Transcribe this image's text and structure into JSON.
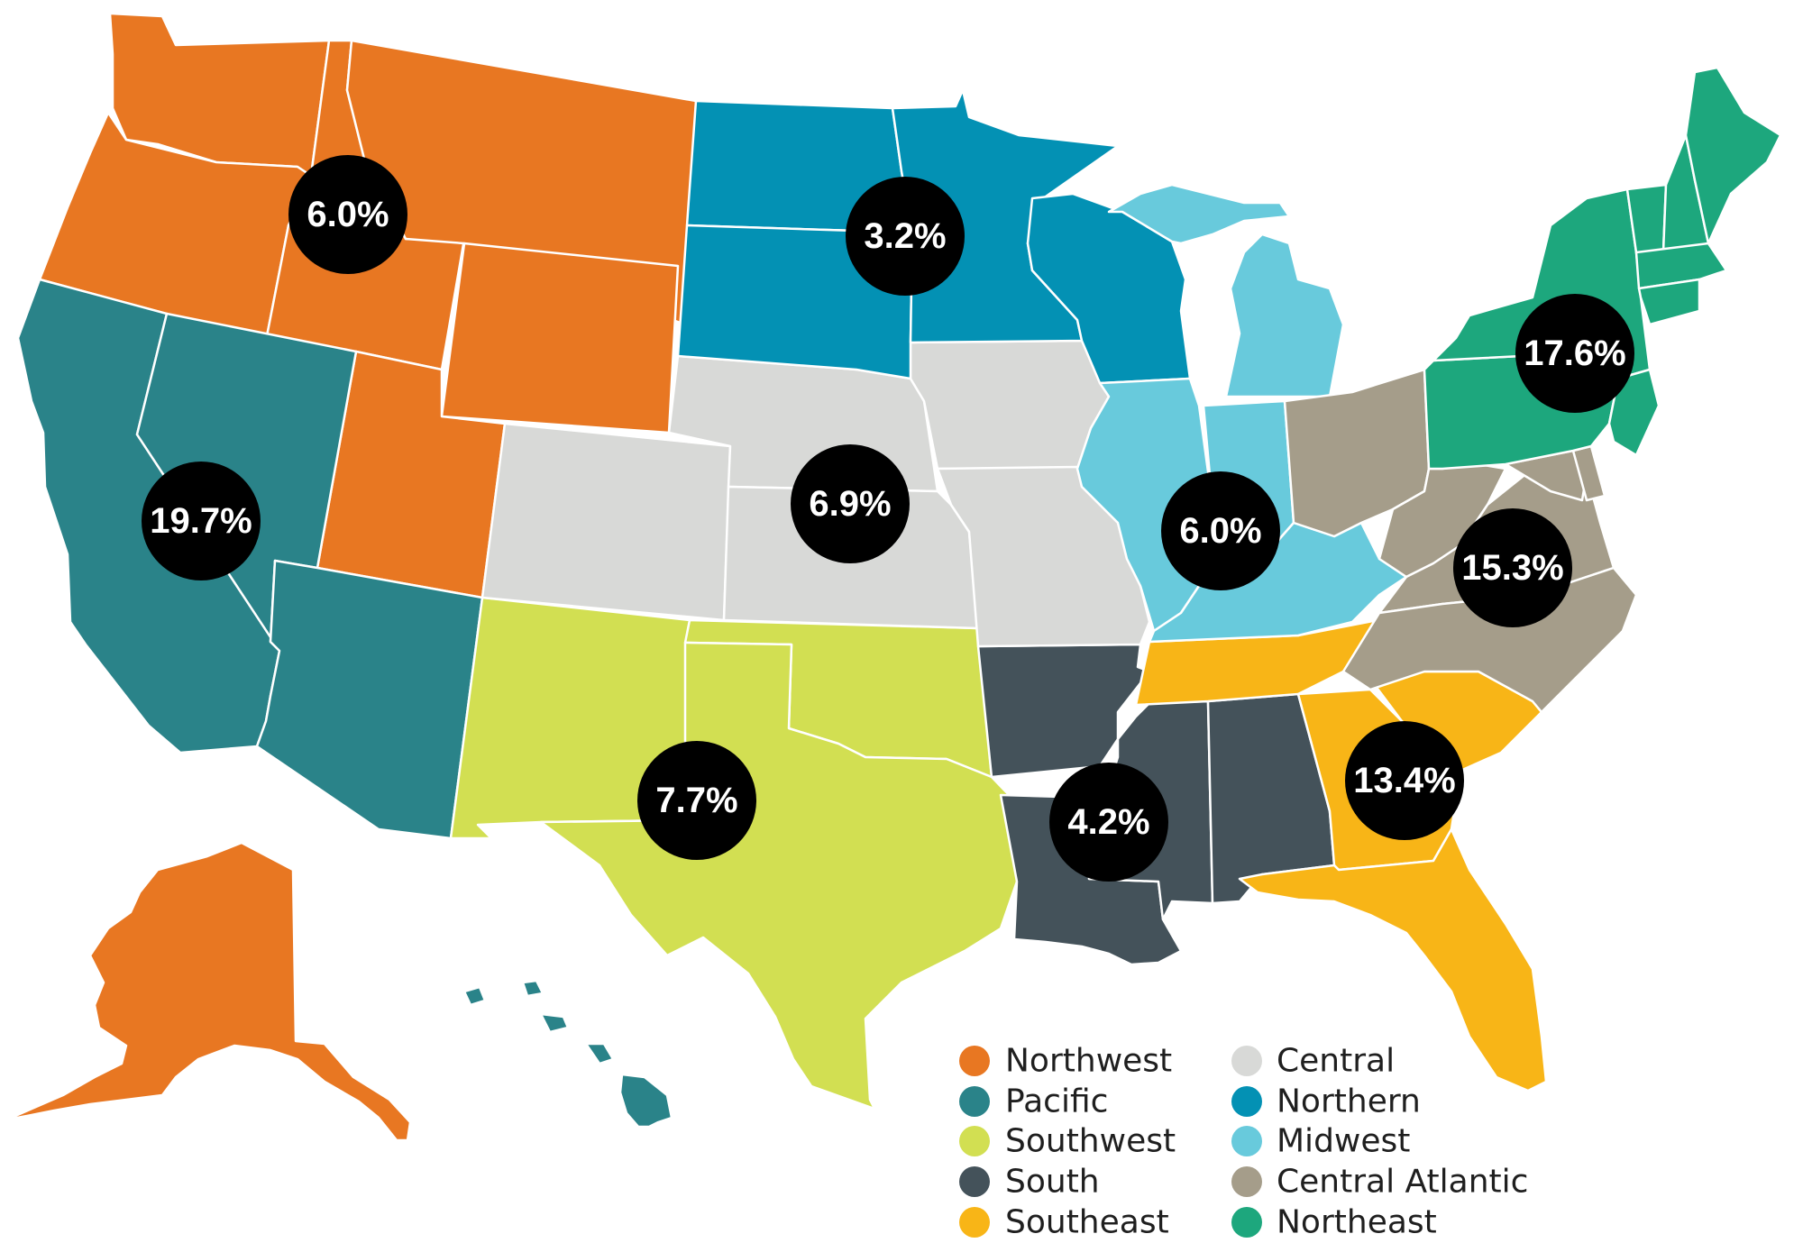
{
  "map": {
    "regions": [
      {
        "id": "northwest",
        "name": "Northwest",
        "color": "#E87722",
        "value": "6.0%"
      },
      {
        "id": "pacific",
        "name": "Pacific",
        "color": "#2A8389",
        "value": "19.7%"
      },
      {
        "id": "southwest",
        "name": "Southwest",
        "color": "#D2DF52",
        "value": "7.7%"
      },
      {
        "id": "south",
        "name": "South",
        "color": "#44525A",
        "value": "4.2%"
      },
      {
        "id": "southeast",
        "name": "Southeast",
        "color": "#F8B517",
        "value": "13.4%"
      },
      {
        "id": "central",
        "name": "Central",
        "color": "#D8D9D7",
        "value": "6.9%"
      },
      {
        "id": "northern",
        "name": "Northern",
        "color": "#0391B4",
        "value": "3.2%"
      },
      {
        "id": "midwest",
        "name": "Midwest",
        "color": "#68CADC",
        "value": "6.0%"
      },
      {
        "id": "central_atlantic",
        "name": "Central Atlantic",
        "color": "#A59D8A",
        "value": "15.3%"
      },
      {
        "id": "northeast",
        "name": "Northeast",
        "color": "#1DA77D",
        "value": "17.6%"
      }
    ]
  }
}
